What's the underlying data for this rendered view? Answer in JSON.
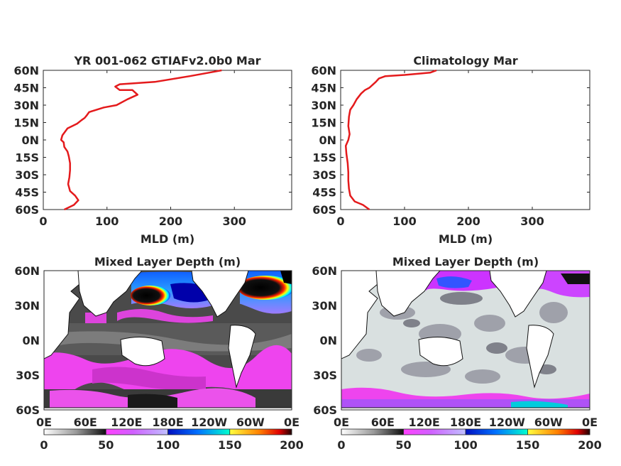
{
  "chart_data": [
    {
      "type": "line",
      "title": "YR 001-062 GTIAFv2.0b0 Mar",
      "xlabel": "MLD (m)",
      "ylabel": "",
      "xlim": [
        0,
        390
      ],
      "ylim": [
        -60,
        60
      ],
      "xticks": [
        "0",
        "100",
        "200",
        "300"
      ],
      "yticks": [
        "60N",
        "45N",
        "30N",
        "15N",
        "0N",
        "15S",
        "30S",
        "45S",
        "60S"
      ],
      "series": [
        {
          "color": "#e41a1c",
          "x": [
            33,
            48,
            55,
            50,
            42,
            39,
            41,
            42,
            42,
            40,
            38,
            33,
            32,
            28,
            30,
            38,
            53,
            60,
            65,
            68,
            72,
            95,
            115,
            132,
            148,
            140,
            120,
            113,
            120,
            175,
            230,
            260,
            280
          ],
          "y": [
            -60,
            -56,
            -52,
            -48,
            -44,
            -38,
            -32,
            -26,
            -20,
            -14,
            -10,
            -6,
            -2,
            0,
            4,
            10,
            14,
            17,
            19,
            21,
            24,
            28,
            30,
            35,
            39,
            43,
            43,
            46,
            48,
            50,
            55,
            58,
            60
          ]
        }
      ]
    },
    {
      "type": "line",
      "title": "Climatology Mar",
      "xlabel": "MLD (m)",
      "ylabel": "",
      "xlim": [
        0,
        390
      ],
      "ylim": [
        -60,
        60
      ],
      "xticks": [
        "0",
        "100",
        "200",
        "300"
      ],
      "yticks": [
        "60N",
        "45N",
        "30N",
        "15N",
        "0N",
        "15S",
        "30S",
        "45S",
        "60S"
      ],
      "series": [
        {
          "color": "#e41a1c",
          "x": [
            45,
            35,
            22,
            15,
            13,
            12,
            12,
            11,
            9,
            8,
            12,
            14,
            12,
            13,
            15,
            20,
            25,
            32,
            38,
            45,
            55,
            60,
            70,
            100,
            140,
            150
          ],
          "y": [
            -60,
            -56,
            -53,
            -48,
            -42,
            -35,
            -28,
            -20,
            -12,
            -5,
            0,
            5,
            12,
            20,
            26,
            30,
            35,
            40,
            43,
            45,
            50,
            53,
            55,
            56,
            58,
            60
          ]
        }
      ]
    },
    {
      "type": "heatmap",
      "title": "Mixed Layer Depth (m)",
      "xticks": [
        "0E",
        "60E",
        "120E",
        "180E",
        "120W",
        "60W",
        "0E"
      ],
      "yticks": [
        "60N",
        "30N",
        "0N",
        "30S",
        "60S"
      ],
      "colorbar": {
        "ticks": [
          "0",
          "50",
          "100",
          "150",
          "200"
        ],
        "range": [
          0,
          200
        ],
        "stops": [
          "#ffffff",
          "#8a8a8a",
          "#1a1a1a",
          "#ff33ff",
          "#b8b8ff",
          "#0000cc",
          "#00ffff",
          "#ffff00",
          "#ff0000",
          "#000000"
        ]
      }
    },
    {
      "type": "heatmap",
      "title": "Mixed Layer Depth (m)",
      "xticks": [
        "0E",
        "60E",
        "120E",
        "180E",
        "120W",
        "60W",
        "0E"
      ],
      "yticks": [
        "60N",
        "30N",
        "0N",
        "30S",
        "60S"
      ],
      "colorbar": {
        "ticks": [
          "0",
          "50",
          "100",
          "150",
          "200"
        ],
        "range": [
          0,
          200
        ],
        "stops": [
          "#ffffff",
          "#8a8a8a",
          "#1a1a1a",
          "#ff33ff",
          "#b8b8ff",
          "#0000cc",
          "#00ffff",
          "#ffff00",
          "#ff0000",
          "#000000"
        ]
      }
    }
  ]
}
